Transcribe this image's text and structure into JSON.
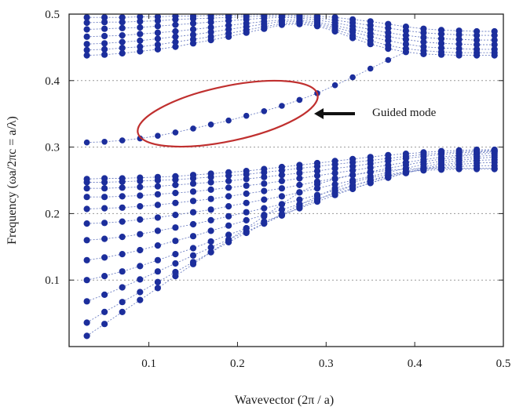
{
  "chart_data": {
    "type": "scatter",
    "title": "",
    "xlabel": "Wavevector (2π / a)",
    "ylabel": "Frequency (ωa/2πc = a/λ)",
    "xlim": [
      0.01,
      0.5
    ],
    "ylim": [
      0.0,
      0.5
    ],
    "xticks": [
      0.1,
      0.2,
      0.3,
      0.4,
      0.5
    ],
    "yticks": [
      0.1,
      0.2,
      0.3,
      0.4,
      0.5
    ],
    "grid": "dotted horizontal lines at y = 0.1, 0.2, 0.3, 0.4",
    "point_color": "#1c2e9c",
    "line_color": "#6f80c4",
    "highlight_color": "#c0302f",
    "annotation": {
      "text": "Guided mode",
      "arrow": "left"
    },
    "lower_band": {
      "x": [
        0.03,
        0.05,
        0.07,
        0.09,
        0.11,
        0.13,
        0.15,
        0.17,
        0.19,
        0.21,
        0.23,
        0.25,
        0.27,
        0.29,
        0.31,
        0.33,
        0.35,
        0.37,
        0.39,
        0.41,
        0.43,
        0.45,
        0.47,
        0.49
      ],
      "modes": [
        {
          "name": "m1",
          "values": [
            0.016,
            0.034,
            0.052,
            0.07,
            0.088,
            0.106,
            0.124,
            0.142,
            0.16,
            0.178,
            0.196,
            0.214,
            0.232,
            0.244,
            0.252,
            0.258,
            0.262,
            0.265,
            0.267,
            0.268,
            0.268,
            0.268,
            0.268,
            0.268
          ]
        },
        {
          "name": "m2",
          "values": [
            0.036,
            0.052,
            0.067,
            0.082,
            0.097,
            0.112,
            0.127,
            0.142,
            0.157,
            0.171,
            0.185,
            0.199,
            0.213,
            0.226,
            0.238,
            0.247,
            0.254,
            0.259,
            0.263,
            0.265,
            0.266,
            0.267,
            0.267,
            0.267
          ]
        },
        {
          "name": "m3",
          "values": [
            0.068,
            0.078,
            0.089,
            0.101,
            0.113,
            0.125,
            0.137,
            0.149,
            0.161,
            0.173,
            0.185,
            0.197,
            0.209,
            0.221,
            0.232,
            0.242,
            0.25,
            0.257,
            0.262,
            0.266,
            0.269,
            0.271,
            0.272,
            0.272
          ]
        },
        {
          "name": "m4",
          "values": [
            0.1,
            0.106,
            0.113,
            0.121,
            0.13,
            0.139,
            0.148,
            0.158,
            0.168,
            0.178,
            0.188,
            0.198,
            0.208,
            0.218,
            0.228,
            0.237,
            0.246,
            0.254,
            0.261,
            0.267,
            0.271,
            0.274,
            0.276,
            0.277
          ]
        },
        {
          "name": "m5",
          "values": [
            0.13,
            0.134,
            0.139,
            0.145,
            0.152,
            0.159,
            0.166,
            0.174,
            0.182,
            0.19,
            0.198,
            0.206,
            0.214,
            0.222,
            0.23,
            0.238,
            0.246,
            0.254,
            0.261,
            0.268,
            0.273,
            0.277,
            0.28,
            0.281
          ]
        },
        {
          "name": "m6",
          "values": [
            0.16,
            0.162,
            0.165,
            0.169,
            0.174,
            0.179,
            0.184,
            0.19,
            0.196,
            0.202,
            0.208,
            0.214,
            0.221,
            0.228,
            0.235,
            0.242,
            0.249,
            0.256,
            0.263,
            0.27,
            0.276,
            0.28,
            0.283,
            0.285
          ]
        },
        {
          "name": "m7",
          "values": [
            0.185,
            0.186,
            0.188,
            0.191,
            0.194,
            0.198,
            0.202,
            0.206,
            0.211,
            0.216,
            0.221,
            0.226,
            0.232,
            0.238,
            0.244,
            0.25,
            0.256,
            0.262,
            0.268,
            0.274,
            0.279,
            0.283,
            0.286,
            0.288
          ]
        },
        {
          "name": "m8",
          "values": [
            0.207,
            0.208,
            0.209,
            0.211,
            0.213,
            0.216,
            0.219,
            0.222,
            0.226,
            0.23,
            0.234,
            0.238,
            0.243,
            0.248,
            0.253,
            0.258,
            0.263,
            0.268,
            0.273,
            0.278,
            0.282,
            0.286,
            0.289,
            0.291
          ]
        },
        {
          "name": "m9",
          "values": [
            0.225,
            0.225,
            0.226,
            0.227,
            0.229,
            0.231,
            0.233,
            0.236,
            0.239,
            0.242,
            0.245,
            0.249,
            0.253,
            0.257,
            0.261,
            0.265,
            0.269,
            0.273,
            0.277,
            0.281,
            0.285,
            0.288,
            0.291,
            0.293
          ]
        },
        {
          "name": "m10",
          "values": [
            0.238,
            0.238,
            0.239,
            0.24,
            0.241,
            0.243,
            0.245,
            0.247,
            0.249,
            0.252,
            0.255,
            0.258,
            0.261,
            0.264,
            0.268,
            0.271,
            0.275,
            0.279,
            0.283,
            0.286,
            0.289,
            0.291,
            0.293,
            0.294
          ]
        },
        {
          "name": "m11",
          "values": [
            0.247,
            0.247,
            0.248,
            0.249,
            0.25,
            0.251,
            0.253,
            0.255,
            0.257,
            0.259,
            0.262,
            0.265,
            0.268,
            0.271,
            0.274,
            0.277,
            0.28,
            0.283,
            0.286,
            0.289,
            0.291,
            0.293,
            0.294,
            0.295
          ]
        },
        {
          "name": "m12",
          "values": [
            0.252,
            0.253,
            0.253,
            0.254,
            0.255,
            0.256,
            0.258,
            0.26,
            0.262,
            0.264,
            0.267,
            0.27,
            0.273,
            0.276,
            0.279,
            0.282,
            0.285,
            0.288,
            0.29,
            0.292,
            0.294,
            0.295,
            0.296,
            0.296
          ]
        }
      ]
    },
    "upper_band": {
      "x": [
        0.03,
        0.05,
        0.07,
        0.09,
        0.11,
        0.13,
        0.15,
        0.17,
        0.19,
        0.21,
        0.23,
        0.25,
        0.27,
        0.29,
        0.31,
        0.33,
        0.35,
        0.37,
        0.39,
        0.41,
        0.43,
        0.45,
        0.47,
        0.49
      ],
      "modes": [
        {
          "name": "u1",
          "values": [
            0.438,
            0.439,
            0.441,
            0.444,
            0.447,
            0.451,
            0.456,
            0.461,
            0.466,
            0.472,
            0.478,
            0.484,
            0.485,
            0.482,
            0.474,
            0.464,
            0.455,
            0.448,
            0.443,
            0.44,
            0.439,
            0.438,
            0.438,
            0.438
          ]
        },
        {
          "name": "u2",
          "values": [
            0.446,
            0.447,
            0.449,
            0.451,
            0.454,
            0.458,
            0.462,
            0.466,
            0.471,
            0.476,
            0.481,
            0.486,
            0.487,
            0.484,
            0.477,
            0.468,
            0.46,
            0.453,
            0.448,
            0.445,
            0.443,
            0.442,
            0.442,
            0.442
          ]
        },
        {
          "name": "u3",
          "values": [
            0.455,
            0.456,
            0.458,
            0.46,
            0.463,
            0.466,
            0.469,
            0.473,
            0.477,
            0.481,
            0.485,
            0.489,
            0.489,
            0.486,
            0.48,
            0.473,
            0.466,
            0.46,
            0.455,
            0.451,
            0.449,
            0.448,
            0.447,
            0.447
          ]
        },
        {
          "name": "u4",
          "values": [
            0.466,
            0.467,
            0.468,
            0.47,
            0.472,
            0.474,
            0.477,
            0.48,
            0.483,
            0.486,
            0.489,
            0.491,
            0.491,
            0.488,
            0.483,
            0.477,
            0.471,
            0.466,
            0.462,
            0.458,
            0.456,
            0.455,
            0.454,
            0.454
          ]
        },
        {
          "name": "u5",
          "values": [
            0.477,
            0.478,
            0.479,
            0.48,
            0.482,
            0.484,
            0.486,
            0.488,
            0.49,
            0.492,
            0.494,
            0.495,
            0.494,
            0.491,
            0.487,
            0.482,
            0.477,
            0.472,
            0.468,
            0.465,
            0.463,
            0.462,
            0.461,
            0.461
          ]
        },
        {
          "name": "u6",
          "values": [
            0.487,
            0.488,
            0.488,
            0.489,
            0.49,
            0.492,
            0.493,
            0.494,
            0.495,
            0.496,
            0.497,
            0.497,
            0.496,
            0.494,
            0.491,
            0.487,
            0.483,
            0.479,
            0.475,
            0.472,
            0.47,
            0.469,
            0.468,
            0.468
          ]
        },
        {
          "name": "u7",
          "values": [
            0.495,
            0.495,
            0.495,
            0.496,
            0.496,
            0.497,
            0.497,
            0.498,
            0.498,
            0.499,
            0.499,
            0.499,
            0.498,
            0.497,
            0.495,
            0.492,
            0.489,
            0.485,
            0.481,
            0.478,
            0.476,
            0.475,
            0.474,
            0.474
          ]
        }
      ]
    },
    "guided_mode": {
      "x": [
        0.03,
        0.05,
        0.07,
        0.09,
        0.11,
        0.13,
        0.15,
        0.17,
        0.19,
        0.21,
        0.23,
        0.25,
        0.27,
        0.29,
        0.31,
        0.33,
        0.35,
        0.37,
        0.39
      ],
      "values": [
        0.307,
        0.308,
        0.31,
        0.313,
        0.317,
        0.322,
        0.328,
        0.334,
        0.34,
        0.347,
        0.354,
        0.362,
        0.371,
        0.381,
        0.393,
        0.405,
        0.418,
        0.431,
        0.443
      ]
    }
  }
}
